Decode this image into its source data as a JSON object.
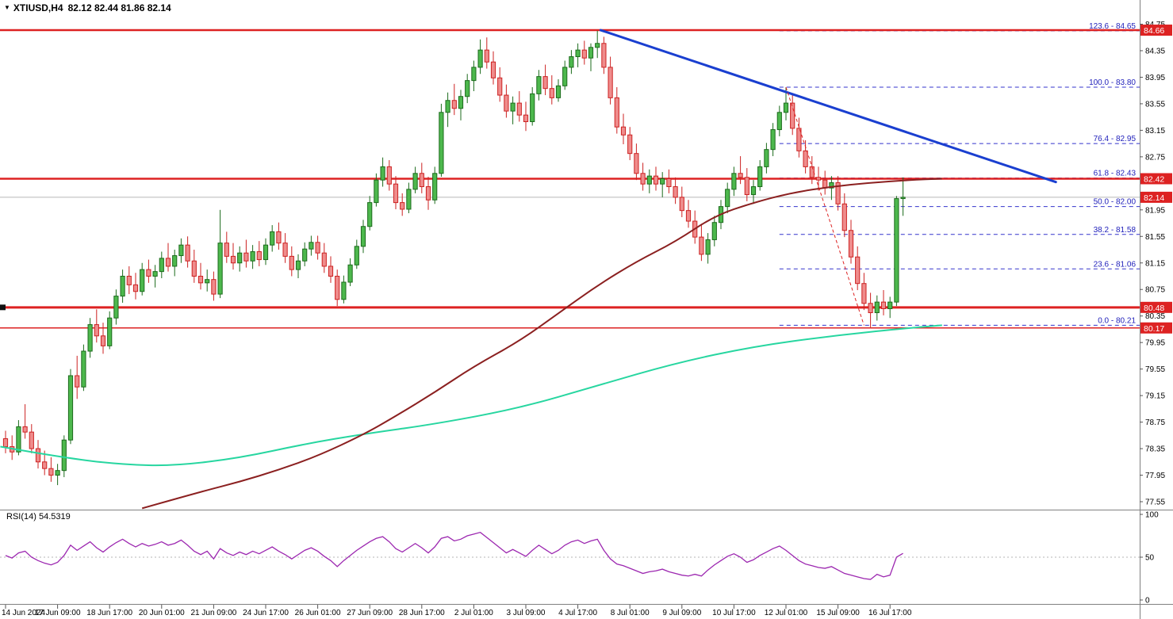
{
  "window": {
    "title_symbol": "XTIUSD,H4",
    "title_ohlc": "82.12 82.44 81.86 82.14"
  },
  "colors": {
    "up_fill": "#4db84d",
    "up_stroke": "#1c6b1c",
    "down_fill": "#ef8c8c",
    "down_stroke": "#cc2222",
    "sr_line": "#dd2222",
    "fib_line": "#3333cc",
    "fib_label": "#2222bb",
    "trendline": "#1a3fd0",
    "ma_slow": "#8b2020",
    "ma_fast": "#27d6a0",
    "rsi_line": "#9c27b0",
    "badge_bg": "#dd2222",
    "current_price_line": "#b8b8b8"
  },
  "chart_data": {
    "type": "candlestick",
    "title": "XTIUSD,H4",
    "symbol": "XTIUSD",
    "timeframe": "H4",
    "last_ohlc": {
      "open": 82.12,
      "high": 82.44,
      "low": 81.86,
      "close": 82.14
    },
    "current_price": 82.14,
    "current_price_label": "82.14",
    "price_axis": {
      "min": 77.55,
      "max": 84.75,
      "ticks": [
        "84.75",
        "84.35",
        "83.95",
        "83.55",
        "83.15",
        "82.75",
        "81.95",
        "81.55",
        "81.15",
        "80.75",
        "80.35",
        "79.95",
        "79.55",
        "79.15",
        "78.75",
        "78.35",
        "77.95",
        "77.55"
      ]
    },
    "time_labels": [
      "14 Jun 2024",
      "17 Jun 09:00",
      "18 Jun 17:00",
      "20 Jun 01:00",
      "21 Jun 09:00",
      "24 Jun 17:00",
      "26 Jun 01:00",
      "27 Jun 09:00",
      "28 Jun 17:00",
      "2 Jul 01:00",
      "3 Jul 09:00",
      "4 Jul 17:00",
      "8 Jul 01:00",
      "9 Jul 09:00",
      "10 Jul 17:00",
      "12 Jul 01:00",
      "15 Jul 09:00",
      "16 Jul 17:00"
    ],
    "hlines": [
      {
        "price": 84.66,
        "label": "84.66",
        "weight": 2.5,
        "handle": false
      },
      {
        "price": 82.42,
        "label": "82.42",
        "weight": 2.5,
        "handle": false
      },
      {
        "price": 80.48,
        "label": "80.48",
        "weight": 3,
        "handle": true
      },
      {
        "price": 80.17,
        "label": "80.17",
        "weight": 1.5,
        "handle": false
      }
    ],
    "fibonacci": {
      "start_idx": 119,
      "levels": [
        {
          "label": "123.6 - 84.65",
          "price": 84.65
        },
        {
          "label": "100.0 - 83.80",
          "price": 83.8
        },
        {
          "label": "76.4 - 82.95",
          "price": 82.95
        },
        {
          "label": "61.8 - 82.43",
          "price": 82.43
        },
        {
          "label": "50.0 - 82.00",
          "price": 82.0
        },
        {
          "label": "38.2 - 81.58",
          "price": 81.58
        },
        {
          "label": "23.6 - 81.06",
          "price": 81.06
        },
        {
          "label": "0.0 - 80.21",
          "price": 80.21
        }
      ],
      "anchor": {
        "from_idx": 120,
        "from_price": 83.8,
        "to_idx": 132,
        "to_price": 80.21
      }
    },
    "trendline": {
      "from_idx": 91.5,
      "from_price": 84.66,
      "to_idx": 161.5,
      "to_price": 82.37
    },
    "ma_slow_points": [
      [
        21,
        77.45
      ],
      [
        30,
        77.7
      ],
      [
        36,
        77.85
      ],
      [
        42,
        78.03
      ],
      [
        48,
        78.24
      ],
      [
        55,
        78.56
      ],
      [
        60,
        78.84
      ],
      [
        66,
        79.2
      ],
      [
        72,
        79.59
      ],
      [
        79,
        79.97
      ],
      [
        85,
        80.39
      ],
      [
        91,
        80.81
      ],
      [
        97,
        81.17
      ],
      [
        103,
        81.47
      ],
      [
        109,
        81.86
      ],
      [
        115,
        82.06
      ],
      [
        121,
        82.21
      ],
      [
        127,
        82.3
      ],
      [
        133,
        82.36
      ],
      [
        139,
        82.4
      ],
      [
        144,
        82.42
      ]
    ],
    "ma_fast_points": [
      [
        -0.8,
        78.38
      ],
      [
        9,
        78.21
      ],
      [
        18,
        78.11
      ],
      [
        26,
        78.09
      ],
      [
        36,
        78.21
      ],
      [
        46,
        78.42
      ],
      [
        55,
        78.57
      ],
      [
        66,
        78.72
      ],
      [
        79,
        78.96
      ],
      [
        91,
        79.3
      ],
      [
        103,
        79.64
      ],
      [
        115,
        79.89
      ],
      [
        127,
        80.05
      ],
      [
        139,
        80.17
      ],
      [
        144,
        80.21
      ]
    ],
    "candles": [
      [
        78.5,
        78.62,
        78.28,
        78.38
      ],
      [
        78.38,
        78.55,
        78.18,
        78.3
      ],
      [
        78.3,
        78.78,
        78.25,
        78.68
      ],
      [
        78.68,
        79.02,
        78.5,
        78.6
      ],
      [
        78.6,
        78.72,
        78.28,
        78.35
      ],
      [
        78.35,
        78.48,
        78.05,
        78.15
      ],
      [
        78.15,
        78.32,
        77.95,
        78.05
      ],
      [
        78.05,
        78.22,
        77.85,
        77.95
      ],
      [
        77.95,
        78.12,
        77.8,
        78.02
      ],
      [
        78.02,
        78.55,
        77.92,
        78.48
      ],
      [
        78.48,
        79.55,
        78.42,
        79.45
      ],
      [
        79.45,
        79.75,
        79.1,
        79.28
      ],
      [
        79.28,
        79.92,
        79.22,
        79.82
      ],
      [
        79.82,
        80.32,
        79.72,
        80.22
      ],
      [
        80.22,
        80.45,
        79.95,
        80.05
      ],
      [
        80.05,
        80.25,
        79.78,
        79.9
      ],
      [
        79.9,
        80.42,
        79.85,
        80.32
      ],
      [
        80.32,
        80.75,
        80.22,
        80.65
      ],
      [
        80.65,
        81.05,
        80.55,
        80.95
      ],
      [
        80.95,
        81.1,
        80.68,
        80.82
      ],
      [
        80.82,
        81.0,
        80.6,
        80.72
      ],
      [
        80.72,
        81.15,
        80.66,
        81.05
      ],
      [
        81.05,
        81.2,
        80.85,
        80.95
      ],
      [
        80.95,
        81.12,
        80.78,
        81.02
      ],
      [
        81.02,
        81.32,
        80.92,
        81.22
      ],
      [
        81.22,
        81.45,
        81.02,
        81.1
      ],
      [
        81.1,
        81.35,
        80.95,
        81.26
      ],
      [
        81.26,
        81.52,
        81.15,
        81.42
      ],
      [
        81.42,
        81.55,
        81.08,
        81.18
      ],
      [
        81.18,
        81.35,
        80.85,
        80.95
      ],
      [
        80.95,
        81.15,
        80.75,
        80.85
      ],
      [
        80.85,
        81.05,
        80.72,
        80.9
      ],
      [
        80.9,
        81.02,
        80.58,
        80.68
      ],
      [
        80.68,
        81.95,
        80.62,
        81.45
      ],
      [
        81.45,
        81.62,
        81.15,
        81.25
      ],
      [
        81.25,
        81.45,
        81.05,
        81.15
      ],
      [
        81.15,
        81.4,
        81.02,
        81.3
      ],
      [
        81.3,
        81.5,
        81.08,
        81.18
      ],
      [
        81.18,
        81.42,
        81.06,
        81.32
      ],
      [
        81.32,
        81.48,
        81.1,
        81.2
      ],
      [
        81.2,
        81.52,
        81.12,
        81.42
      ],
      [
        81.42,
        81.72,
        81.32,
        81.62
      ],
      [
        81.62,
        81.76,
        81.35,
        81.45
      ],
      [
        81.45,
        81.6,
        81.15,
        81.25
      ],
      [
        81.25,
        81.4,
        80.95,
        81.05
      ],
      [
        81.05,
        81.28,
        80.92,
        81.18
      ],
      [
        81.18,
        81.46,
        81.1,
        81.36
      ],
      [
        81.36,
        81.56,
        81.26,
        81.46
      ],
      [
        81.46,
        81.56,
        81.2,
        81.3
      ],
      [
        81.3,
        81.45,
        81.0,
        81.1
      ],
      [
        81.1,
        81.25,
        80.85,
        80.95
      ],
      [
        80.95,
        81.05,
        80.5,
        80.6
      ],
      [
        80.6,
        80.96,
        80.54,
        80.86
      ],
      [
        80.86,
        81.22,
        80.8,
        81.12
      ],
      [
        81.12,
        81.5,
        81.06,
        81.4
      ],
      [
        81.4,
        81.8,
        81.3,
        81.7
      ],
      [
        81.7,
        82.16,
        81.64,
        82.06
      ],
      [
        82.06,
        82.5,
        82.0,
        82.4
      ],
      [
        82.4,
        82.74,
        82.3,
        82.6
      ],
      [
        82.6,
        82.7,
        82.24,
        82.34
      ],
      [
        82.34,
        82.46,
        81.96,
        82.06
      ],
      [
        82.06,
        82.2,
        81.86,
        81.96
      ],
      [
        81.96,
        82.36,
        81.9,
        82.26
      ],
      [
        82.26,
        82.6,
        82.2,
        82.5
      ],
      [
        82.5,
        82.66,
        82.2,
        82.3
      ],
      [
        82.3,
        82.45,
        81.95,
        82.1
      ],
      [
        82.1,
        82.6,
        82.04,
        82.5
      ],
      [
        82.5,
        83.55,
        82.45,
        83.42
      ],
      [
        83.42,
        83.72,
        83.2,
        83.6
      ],
      [
        83.6,
        83.85,
        83.38,
        83.48
      ],
      [
        83.48,
        83.76,
        83.3,
        83.66
      ],
      [
        83.66,
        84.0,
        83.56,
        83.9
      ],
      [
        83.9,
        84.2,
        83.74,
        84.1
      ],
      [
        84.1,
        84.52,
        84.0,
        84.36
      ],
      [
        84.36,
        84.55,
        84.08,
        84.18
      ],
      [
        84.18,
        84.34,
        83.84,
        83.94
      ],
      [
        83.94,
        84.1,
        83.58,
        83.68
      ],
      [
        83.68,
        83.84,
        83.34,
        83.44
      ],
      [
        83.44,
        83.66,
        83.24,
        83.56
      ],
      [
        83.56,
        83.74,
        83.28,
        83.38
      ],
      [
        83.38,
        83.58,
        83.14,
        83.28
      ],
      [
        83.28,
        83.8,
        83.22,
        83.7
      ],
      [
        83.7,
        84.06,
        83.6,
        83.96
      ],
      [
        83.96,
        84.14,
        83.68,
        83.78
      ],
      [
        83.78,
        83.98,
        83.54,
        83.64
      ],
      [
        83.64,
        83.92,
        83.58,
        83.82
      ],
      [
        83.82,
        84.2,
        83.76,
        84.1
      ],
      [
        84.1,
        84.36,
        84.0,
        84.26
      ],
      [
        84.26,
        84.46,
        84.1,
        84.36
      ],
      [
        84.36,
        84.5,
        84.14,
        84.24
      ],
      [
        84.24,
        84.46,
        84.04,
        84.4
      ],
      [
        84.4,
        84.65,
        84.24,
        84.46
      ],
      [
        84.46,
        84.56,
        84.0,
        84.1
      ],
      [
        84.1,
        84.26,
        83.54,
        83.64
      ],
      [
        83.64,
        83.8,
        83.1,
        83.2
      ],
      [
        83.2,
        83.4,
        82.94,
        83.08
      ],
      [
        83.08,
        83.2,
        82.7,
        82.8
      ],
      [
        82.8,
        82.95,
        82.4,
        82.5
      ],
      [
        82.5,
        82.66,
        82.24,
        82.34
      ],
      [
        82.34,
        82.56,
        82.2,
        82.46
      ],
      [
        82.46,
        82.6,
        82.24,
        82.34
      ],
      [
        82.34,
        82.52,
        82.14,
        82.42
      ],
      [
        82.42,
        82.56,
        82.2,
        82.3
      ],
      [
        82.3,
        82.44,
        82.04,
        82.14
      ],
      [
        82.14,
        82.3,
        81.84,
        81.94
      ],
      [
        81.94,
        82.1,
        81.68,
        81.78
      ],
      [
        81.78,
        81.94,
        81.44,
        81.54
      ],
      [
        81.54,
        81.74,
        81.18,
        81.28
      ],
      [
        81.28,
        81.6,
        81.14,
        81.5
      ],
      [
        81.5,
        81.86,
        81.4,
        81.76
      ],
      [
        81.76,
        82.1,
        81.66,
        82.0
      ],
      [
        82.0,
        82.36,
        81.9,
        82.26
      ],
      [
        82.26,
        82.6,
        82.16,
        82.5
      ],
      [
        82.5,
        82.76,
        82.34,
        82.44
      ],
      [
        82.44,
        82.58,
        82.08,
        82.18
      ],
      [
        82.18,
        82.4,
        82.04,
        82.3
      ],
      [
        82.3,
        82.7,
        82.24,
        82.6
      ],
      [
        82.6,
        82.96,
        82.5,
        82.86
      ],
      [
        82.86,
        83.26,
        82.76,
        83.16
      ],
      [
        83.16,
        83.52,
        83.06,
        83.42
      ],
      [
        83.42,
        83.8,
        83.3,
        83.56
      ],
      [
        83.56,
        83.7,
        83.08,
        83.18
      ],
      [
        83.18,
        83.34,
        82.74,
        82.84
      ],
      [
        82.84,
        83.0,
        82.5,
        82.6
      ],
      [
        82.6,
        82.76,
        82.34,
        82.44
      ],
      [
        82.44,
        82.6,
        82.24,
        82.4
      ],
      [
        82.4,
        82.54,
        82.18,
        82.28
      ],
      [
        82.28,
        82.46,
        82.1,
        82.36
      ],
      [
        82.36,
        82.46,
        81.94,
        82.04
      ],
      [
        82.04,
        82.2,
        81.54,
        81.64
      ],
      [
        81.64,
        81.8,
        81.14,
        81.24
      ],
      [
        81.24,
        81.4,
        80.74,
        80.84
      ],
      [
        80.84,
        81.0,
        80.44,
        80.54
      ],
      [
        80.54,
        80.7,
        80.18,
        80.4
      ],
      [
        80.4,
        80.66,
        80.28,
        80.56
      ],
      [
        80.56,
        80.74,
        80.36,
        80.46
      ],
      [
        80.46,
        80.64,
        80.32,
        80.56
      ],
      [
        80.56,
        82.16,
        80.5,
        82.12
      ],
      [
        82.12,
        82.44,
        81.86,
        82.14
      ]
    ],
    "rsi": {
      "label": "RSI(14) 54.5319",
      "period": 14,
      "value": 54.5319,
      "scale_ticks": [
        100,
        50,
        0
      ],
      "mid_level": 50,
      "values": [
        52,
        49,
        55,
        57,
        50,
        46,
        43,
        41,
        44,
        52,
        64,
        58,
        63,
        68,
        61,
        56,
        62,
        67,
        71,
        66,
        62,
        66,
        63,
        65,
        68,
        64,
        66,
        70,
        64,
        57,
        53,
        57,
        48,
        60,
        55,
        52,
        56,
        53,
        57,
        54,
        58,
        62,
        57,
        53,
        48,
        53,
        58,
        61,
        57,
        51,
        46,
        39,
        46,
        52,
        58,
        63,
        68,
        72,
        74,
        68,
        60,
        56,
        61,
        66,
        61,
        55,
        62,
        72,
        74,
        69,
        71,
        75,
        77,
        79,
        73,
        67,
        61,
        55,
        59,
        55,
        51,
        58,
        64,
        59,
        54,
        58,
        64,
        68,
        70,
        66,
        69,
        71,
        58,
        48,
        42,
        40,
        37,
        34,
        31,
        33,
        34,
        36,
        33,
        31,
        29,
        28,
        30,
        28,
        35,
        41,
        46,
        51,
        54,
        50,
        44,
        47,
        52,
        56,
        60,
        63,
        58,
        52,
        46,
        42,
        40,
        38,
        37,
        39,
        35,
        31,
        29,
        27,
        25,
        24,
        30,
        27,
        29,
        50,
        54.5
      ]
    }
  }
}
